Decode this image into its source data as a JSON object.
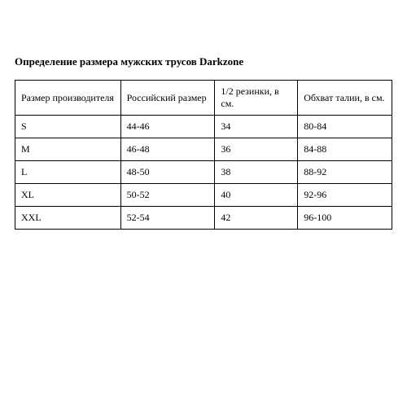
{
  "title": "Определение размера мужских трусов Darkzone",
  "table": {
    "columns": [
      "Размер производителя",
      "Российский размер",
      "1/2 резинки, в см.",
      "Обхват талии, в см."
    ],
    "rows": [
      [
        "S",
        "44-46",
        "34",
        "80-84"
      ],
      [
        "M",
        "46-48",
        "36",
        "84-88"
      ],
      [
        "L",
        "48-50",
        "38",
        "88-92"
      ],
      [
        "XL",
        "50-52",
        "40",
        "92-96"
      ],
      [
        "XXL",
        "52-54",
        "42",
        "96-100"
      ]
    ],
    "border_color": "#000000",
    "text_color": "#000000",
    "background_color": "#ffffff",
    "header_fontsize": 12,
    "cell_fontsize": 12,
    "title_fontsize": 13,
    "column_widths_pct": [
      28,
      25,
      22,
      25
    ],
    "cell_align": "left"
  }
}
